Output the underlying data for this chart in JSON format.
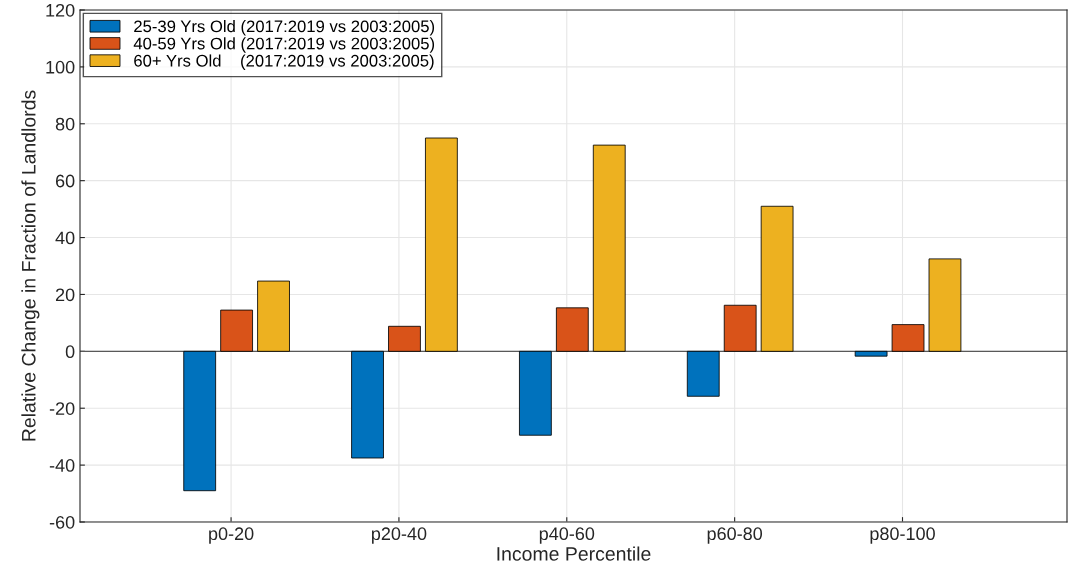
{
  "chart_data": {
    "type": "bar",
    "xlabel": "Income Percentile",
    "ylabel": "Relative Change in Fraction of Landlords",
    "categories": [
      "p0-20",
      "p20-40",
      "p40-60",
      "p60-80",
      "p80-100"
    ],
    "series": [
      {
        "name": "25-39 Yrs Old (2017:2019 vs 2003:2005)",
        "color": "#0072bd",
        "values": [
          -49,
          -37.5,
          -29.5,
          -15.8,
          -1.7
        ]
      },
      {
        "name": "40-59 Yrs Old (2017:2019 vs 2003:2005)",
        "color": "#d95319",
        "values": [
          14.5,
          8.8,
          15.3,
          16.2,
          9.4
        ]
      },
      {
        "name": "60+ Yrs Old    (2017:2019 vs 2003:2005)",
        "color": "#edb120",
        "values": [
          24.7,
          75,
          72.5,
          51,
          32.5
        ]
      }
    ],
    "ylim": [
      -60,
      120
    ],
    "yticks": [
      -60,
      -40,
      -20,
      0,
      20,
      40,
      60,
      80,
      100,
      120
    ],
    "ref_lines": [
      {
        "axis": "y",
        "value": 0,
        "label": null,
        "color": "#595959"
      }
    ],
    "grid": true,
    "legend": "top left"
  }
}
